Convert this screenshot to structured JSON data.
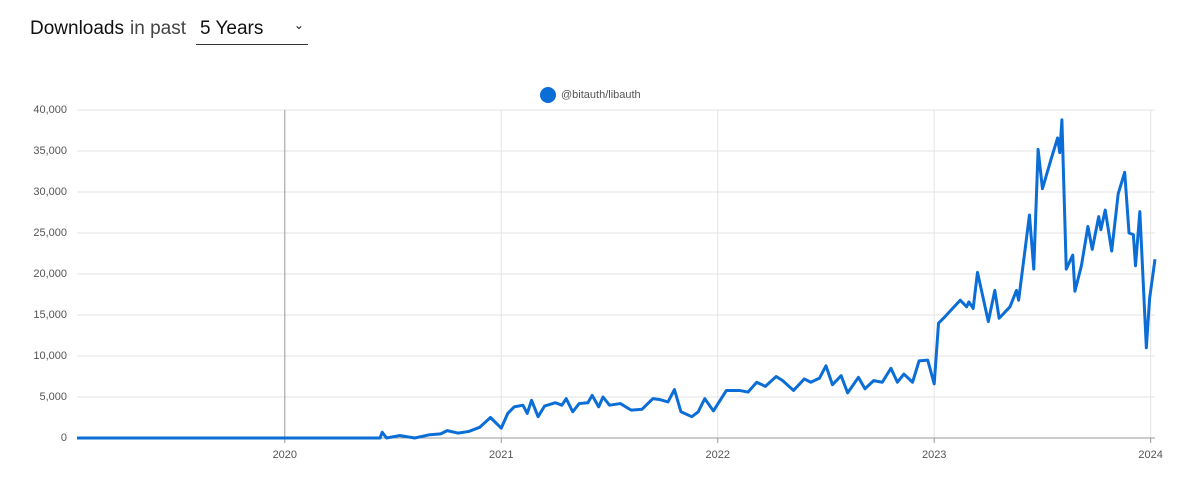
{
  "header": {
    "title": "Downloads",
    "label": "in past",
    "select": "5 Years"
  },
  "chart_data": {
    "type": "line",
    "x": [
      2019.04,
      2020.44,
      2020.45,
      2020.47,
      2020.53,
      2020.6,
      2020.67,
      2020.72,
      2020.75,
      2020.8,
      2020.85,
      2020.9,
      2020.95,
      2021.0,
      2021.03,
      2021.06,
      2021.1,
      2021.12,
      2021.14,
      2021.17,
      2021.2,
      2021.25,
      2021.28,
      2021.3,
      2021.33,
      2021.36,
      2021.4,
      2021.42,
      2021.45,
      2021.47,
      2021.5,
      2021.55,
      2021.6,
      2021.65,
      2021.7,
      2021.73,
      2021.77,
      2021.8,
      2021.83,
      2021.88,
      2021.91,
      2021.94,
      2021.98,
      2022.04,
      2022.1,
      2022.14,
      2022.18,
      2022.22,
      2022.27,
      2022.3,
      2022.35,
      2022.4,
      2022.43,
      2022.47,
      2022.5,
      2022.53,
      2022.57,
      2022.6,
      2022.65,
      2022.68,
      2022.72,
      2022.76,
      2022.8,
      2022.83,
      2022.86,
      2022.9,
      2022.93,
      2022.97,
      2023.0,
      2023.02,
      2023.05,
      2023.12,
      2023.15,
      2023.16,
      2023.18,
      2023.2,
      2023.25,
      2023.28,
      2023.3,
      2023.35,
      2023.38,
      2023.39,
      2023.44,
      2023.46,
      2023.48,
      2023.5,
      2023.54,
      2023.57,
      2023.58,
      2023.59,
      2023.61,
      2023.64,
      2023.65,
      2023.68,
      2023.71,
      2023.73,
      2023.76,
      2023.77,
      2023.79,
      2023.82,
      2023.85,
      2023.88,
      2023.9,
      2023.92,
      2023.93,
      2023.95,
      2023.98,
      2023.995,
      2024.02
    ],
    "series": [
      {
        "name": "@bitauth/libauth",
        "color": "#0b6ed6",
        "values": [
          0,
          0,
          700,
          0,
          300,
          0,
          400,
          500,
          900,
          600,
          800,
          1300,
          2500,
          1200,
          3000,
          3800,
          4000,
          3000,
          4600,
          2600,
          3900,
          4300,
          4000,
          4800,
          3200,
          4200,
          4300,
          5200,
          3800,
          5000,
          4000,
          4200,
          3400,
          3500,
          4800,
          4700,
          4400,
          5900,
          3200,
          2600,
          3200,
          4800,
          3300,
          5800,
          5800,
          5600,
          6800,
          6300,
          7500,
          7000,
          5800,
          7200,
          6800,
          7300,
          8800,
          6500,
          7600,
          5500,
          7400,
          6000,
          7000,
          6800,
          8500,
          6800,
          7800,
          6800,
          9400,
          9500,
          6600,
          14000,
          14800,
          16800,
          16000,
          16600,
          15800,
          20200,
          14200,
          18000,
          14600,
          16000,
          18000,
          16800,
          27200,
          20600,
          35200,
          30400,
          34000,
          36600,
          34800,
          38800,
          20600,
          22300,
          17900,
          21000,
          25800,
          23000,
          27000,
          25400,
          27800,
          22800,
          29800,
          32400,
          25000,
          24800,
          21000,
          27600,
          11000,
          17000,
          21800
        ]
      }
    ],
    "xlim": [
      2019.04,
      2024.02
    ],
    "xticks": [
      2020,
      2021,
      2022,
      2023,
      2024
    ],
    "ylim": [
      0,
      40000
    ],
    "yticks": [
      0,
      {
        "value": 5000,
        "label": "5,000"
      },
      {
        "value": 10000,
        "label": "10,000"
      },
      {
        "value": 15000,
        "label": "15,000"
      },
      {
        "value": 20000,
        "label": "20,000"
      },
      {
        "value": 25000,
        "label": "25,000"
      },
      {
        "value": 30000,
        "label": "30,000"
      },
      {
        "value": 35000,
        "label": "35,000"
      },
      {
        "value": 40000,
        "label": "40,000"
      }
    ],
    "grid": true
  }
}
